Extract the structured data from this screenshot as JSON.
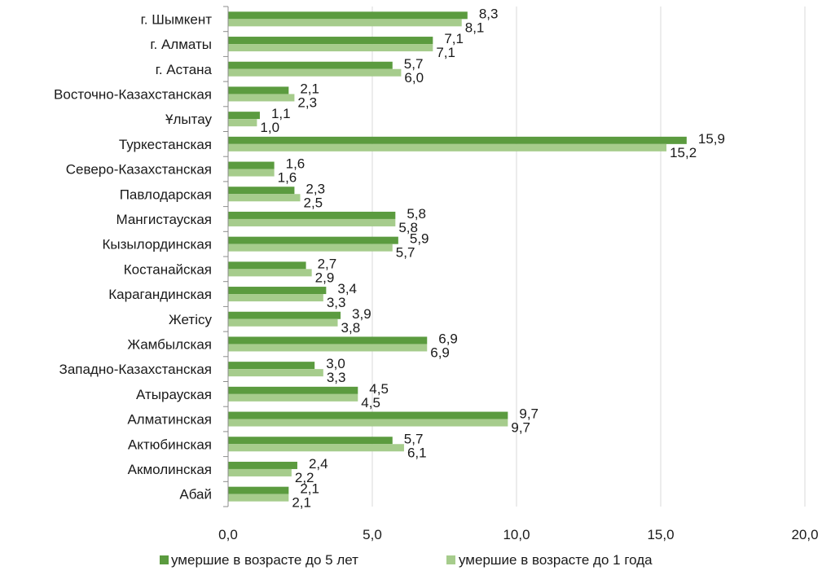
{
  "chart_data": {
    "type": "bar",
    "orientation": "horizontal",
    "categories": [
      "г. Шымкент",
      "г. Алматы",
      "г. Астана",
      "Восточно-Казахстанская",
      "Ұлытау",
      "Туркестанская",
      "Северо-Казахстанская",
      "Павлодарская",
      "Мангистауская",
      "Кызылординская",
      "Костанайская",
      "Карагандинская",
      "Жетісу",
      "Жамбылская",
      "Западно-Казахстанская",
      "Атырауская",
      "Алматинская",
      "Актюбинская",
      "Акмолинская",
      "Абай"
    ],
    "series": [
      {
        "name": "умершие в возрасте до 5 лет",
        "color": "#5b9b3f",
        "values": [
          8.3,
          7.1,
          5.7,
          2.1,
          1.1,
          15.9,
          1.6,
          2.3,
          5.8,
          5.9,
          2.7,
          3.4,
          3.9,
          6.9,
          3.0,
          4.5,
          9.7,
          5.7,
          2.4,
          2.1
        ],
        "labels": [
          "8,3",
          "7,1",
          "5,7",
          "2,1",
          "1,1",
          "15,9",
          "1,6",
          "2,3",
          "5,8",
          "5,9",
          "2,7",
          "3,4",
          "3,9",
          "6,9",
          "3,0",
          "4,5",
          "9,7",
          "5,7",
          "2,4",
          "2,1"
        ]
      },
      {
        "name": "умершие в возрасте до 1 года",
        "color": "#a6cc8c",
        "values": [
          8.1,
          7.1,
          6.0,
          2.3,
          1.0,
          15.2,
          1.6,
          2.5,
          5.8,
          5.7,
          2.9,
          3.3,
          3.8,
          6.9,
          3.3,
          4.5,
          9.7,
          6.1,
          2.2,
          2.1
        ],
        "labels": [
          "8,1",
          "7,1",
          "6,0",
          "2,3",
          "1,0",
          "15,2",
          "1,6",
          "2,5",
          "5,8",
          "5,7",
          "2,9",
          "3,3",
          "3,8",
          "6,9",
          "3,3",
          "4,5",
          "9,7",
          "6,1",
          "2,2",
          "2,1"
        ]
      }
    ],
    "xlim": [
      0,
      20
    ],
    "x_ticks": [
      0,
      5,
      10,
      15,
      20
    ],
    "x_tick_labels": [
      "0,0",
      "5,0",
      "10,0",
      "15,0",
      "20,0"
    ],
    "grid": true,
    "legend_position": "bottom"
  }
}
